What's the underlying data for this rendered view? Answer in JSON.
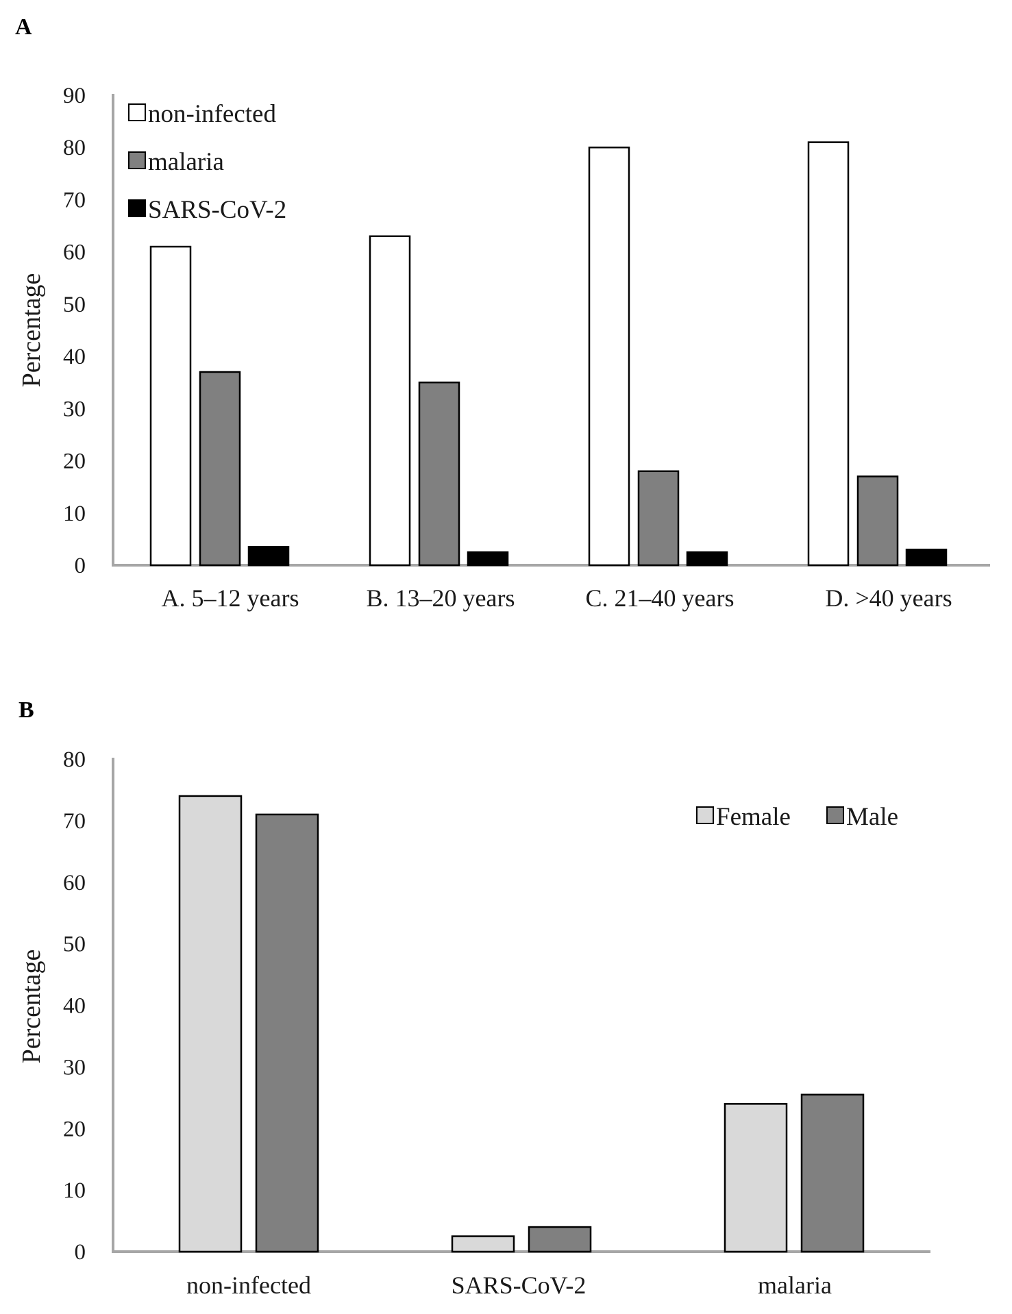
{
  "chart_data": [
    {
      "panel": "A",
      "type": "bar",
      "title": "",
      "xlabel": "",
      "ylabel": "Percentage",
      "ylim": [
        0,
        90
      ],
      "yticks": [
        0,
        10,
        20,
        30,
        40,
        50,
        60,
        70,
        80,
        90
      ],
      "grid": false,
      "legend_position": "top-left",
      "categories": [
        "A.  5–12 years",
        "B. 13–20 years",
        "C. 21–40 years",
        "D. >40 years"
      ],
      "series": [
        {
          "name": "non-infected",
          "color": "#ffffff",
          "values": [
            61,
            63,
            80,
            81
          ]
        },
        {
          "name": "malaria",
          "color": "#808080",
          "values": [
            37,
            35,
            18,
            17
          ]
        },
        {
          "name": "SARS-CoV-2",
          "color": "#000000",
          "values": [
            3.5,
            2.5,
            2.5,
            3
          ]
        }
      ]
    },
    {
      "panel": "B",
      "type": "bar",
      "title": "",
      "xlabel": "",
      "ylabel": "Percentage",
      "ylim": [
        0,
        80
      ],
      "yticks": [
        0,
        10,
        20,
        30,
        40,
        50,
        60,
        70,
        80
      ],
      "grid": false,
      "legend_position": "top-right",
      "categories": [
        "non-infected",
        "SARS-CoV-2",
        "malaria"
      ],
      "series": [
        {
          "name": "Female",
          "color": "#d9d9d9",
          "values": [
            74,
            2.5,
            24
          ]
        },
        {
          "name": "Male",
          "color": "#808080",
          "values": [
            71,
            4,
            25.5
          ]
        }
      ]
    }
  ]
}
